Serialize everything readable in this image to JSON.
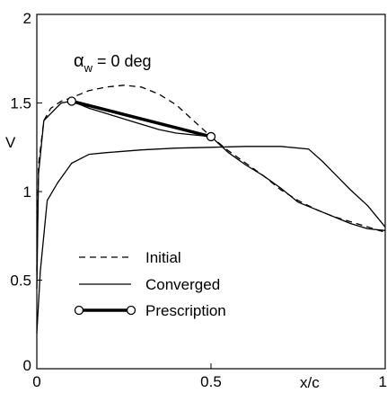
{
  "chart_data": {
    "type": "line",
    "xlabel": "x/c",
    "ylabel": "V",
    "xlim": [
      0,
      1
    ],
    "ylim": [
      0,
      2
    ],
    "x_ticks": [
      0,
      0.5,
      1
    ],
    "x_tick_labels": [
      "0",
      "0.5",
      "1"
    ],
    "y_ticks": [
      0,
      0.5,
      1,
      1.5,
      2
    ],
    "y_tick_labels": [
      "0",
      "0.5",
      "1",
      "1.5",
      "2"
    ],
    "annotation": {
      "symbol": "α",
      "subscript": "w",
      "rest": " = 0 deg"
    },
    "legend_placement": "bottom-left",
    "grid": false,
    "series": [
      {
        "name": "Initial",
        "style": "dashed",
        "color": "#000000",
        "x": [
          0,
          0.005,
          0.02,
          0.04,
          0.07,
          0.1,
          0.15,
          0.2,
          0.25,
          0.3,
          0.35,
          0.4,
          0.45,
          0.5,
          0.55,
          0.6,
          0.65,
          0.7,
          0.75,
          0.8,
          0.85,
          0.9,
          0.95,
          1.0
        ],
        "y": [
          0.55,
          1.15,
          1.4,
          1.47,
          1.51,
          1.53,
          1.57,
          1.59,
          1.6,
          1.59,
          1.55,
          1.49,
          1.4,
          1.31,
          1.23,
          1.16,
          1.09,
          1.01,
          0.95,
          0.9,
          0.86,
          0.83,
          0.8,
          0.77
        ]
      },
      {
        "name": "Converged",
        "style": "solid",
        "color": "#000000",
        "curves": [
          {
            "x": [
              0,
              0.005,
              0.02,
              0.04,
              0.07,
              0.1,
              0.15,
              0.2,
              0.25,
              0.3,
              0.35,
              0.4,
              0.45,
              0.5,
              0.55,
              0.6,
              0.65,
              0.7,
              0.75,
              0.8,
              0.85,
              0.9,
              0.95,
              1.0
            ],
            "y": [
              0.45,
              1.1,
              1.4,
              1.44,
              1.5,
              1.51,
              1.47,
              1.44,
              1.41,
              1.38,
              1.35,
              1.33,
              1.32,
              1.31,
              1.22,
              1.15,
              1.09,
              1.02,
              0.94,
              0.9,
              0.86,
              0.82,
              0.79,
              0.78
            ]
          },
          {
            "x": [
              0,
              0.01,
              0.03,
              0.06,
              0.1,
              0.15,
              0.2,
              0.3,
              0.4,
              0.5,
              0.6,
              0.7,
              0.78,
              0.82,
              0.86,
              0.9,
              0.95,
              1.0
            ],
            "y": [
              0.2,
              0.55,
              0.95,
              1.05,
              1.16,
              1.21,
              1.22,
              1.235,
              1.245,
              1.25,
              1.255,
              1.255,
              1.24,
              1.17,
              1.09,
              1.01,
              0.92,
              0.8
            ]
          }
        ]
      },
      {
        "name": "Prescription",
        "style": "thick-with-open-circle-endpoints",
        "color": "#000000",
        "x": [
          0.1,
          0.5
        ],
        "y": [
          1.51,
          1.31
        ]
      }
    ]
  }
}
